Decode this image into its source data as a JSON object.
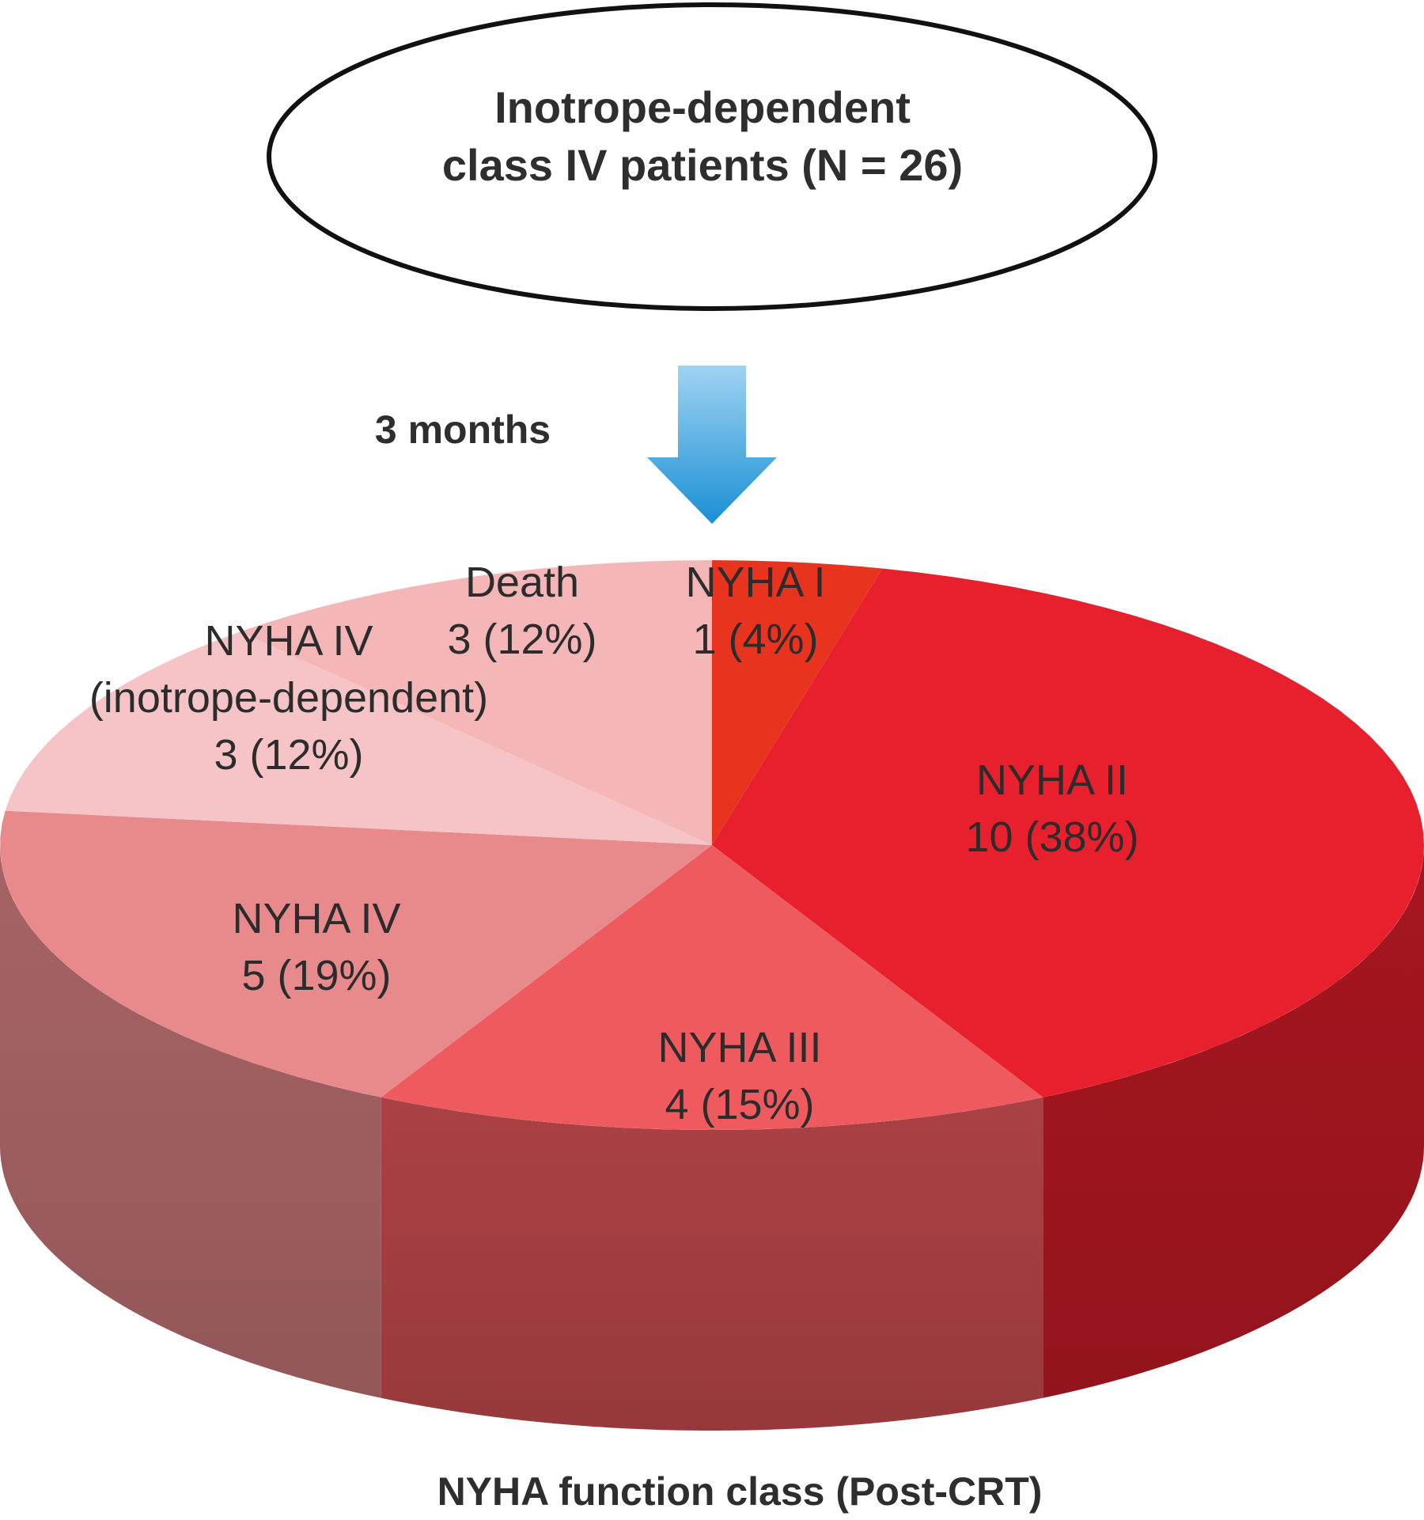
{
  "header": {
    "line1": "Inotrope-dependent",
    "line2": "class IV patients (N = 26)"
  },
  "arrow_label": "3 months",
  "chart_data": {
    "type": "pie",
    "style": "3d",
    "xlabel": "NYHA function class (Post-CRT)",
    "total": 26,
    "slices": [
      {
        "name": "NYHA I",
        "value": 1,
        "value_text": "1 (4%)",
        "color": "#e8341f"
      },
      {
        "name": "NYHA II",
        "value": 10,
        "value_text": "10 (38%)",
        "color": "#e81f2c"
      },
      {
        "name": "NYHA III",
        "value": 4,
        "value_text": "4 (15%)",
        "color": "#ee5a5e"
      },
      {
        "name": "NYHA IV",
        "value": 5,
        "value_text": "5 (19%)",
        "color": "#e8898c"
      },
      {
        "name_lines": [
          "NYHA IV",
          "(inotrope-dependent)"
        ],
        "value": 3,
        "value_text": "3 (12%)",
        "color": "#f6c4c6"
      },
      {
        "name": "Death",
        "value": 3,
        "value_text": "3 (12%)",
        "color": "#f5b6b8"
      }
    ]
  }
}
